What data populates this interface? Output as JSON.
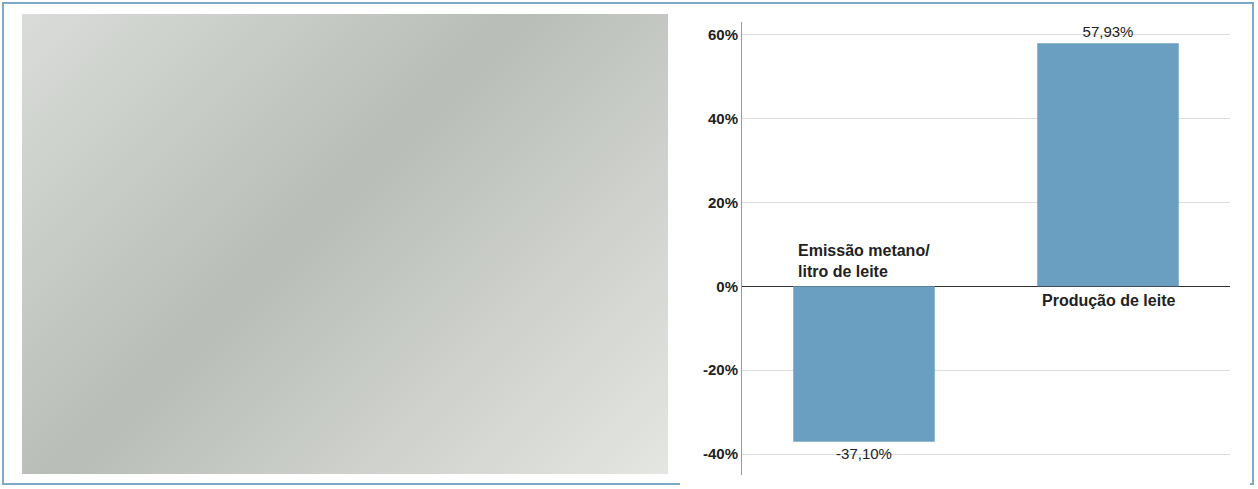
{
  "chart_data": {
    "type": "bar",
    "categories": [
      "Emissão metano/ litro de leite",
      "Produção de leite"
    ],
    "values": [
      -37.1,
      57.93
    ],
    "value_labels": [
      "-37,10%",
      "57,93%"
    ],
    "color": "#6a9fc1",
    "ylim": [
      -45,
      63
    ],
    "yticks": [
      {
        "value": -40,
        "label": "-40%"
      },
      {
        "value": -20,
        "label": "-20%"
      },
      {
        "value": 0,
        "label": "0%"
      },
      {
        "value": 20,
        "label": "20%"
      },
      {
        "value": 40,
        "label": "40%"
      },
      {
        "value": 60,
        "label": "60%"
      }
    ],
    "grid": true,
    "data_labels": true
  }
}
